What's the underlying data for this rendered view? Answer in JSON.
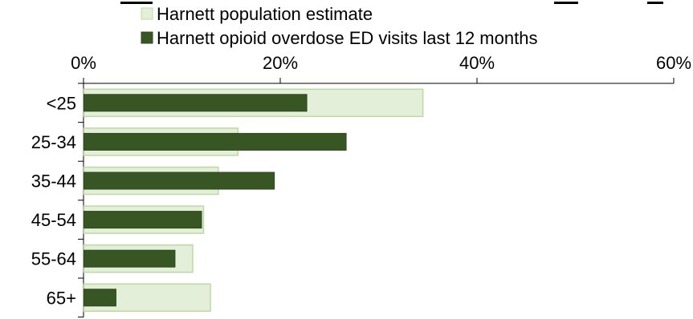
{
  "chart_data": {
    "type": "bar",
    "orientation": "horizontal",
    "title": "",
    "xlabel": "",
    "ylabel": "",
    "xlim": [
      0,
      60
    ],
    "x_ticks": [
      0,
      20,
      40,
      60
    ],
    "x_tick_labels": [
      "0%",
      "20%",
      "40%",
      "60%"
    ],
    "x_axis_position": "top",
    "grid": false,
    "legend_position": "top",
    "categories": [
      "<25",
      "25-34",
      "35-44",
      "45-54",
      "55-64",
      "65+"
    ],
    "series": [
      {
        "name": "Harnett population estimate",
        "values": [
          34.5,
          15.7,
          13.7,
          12.2,
          11.1,
          12.9
        ],
        "color": "#e3efd9",
        "stroke": "#bcd9a4"
      },
      {
        "name": "Harnett opioid overdose ED visits last 12 months",
        "values": [
          22.7,
          26.7,
          19.4,
          12.0,
          9.3,
          3.3
        ],
        "color": "#375623",
        "stroke": "#2d4a1c"
      }
    ]
  }
}
